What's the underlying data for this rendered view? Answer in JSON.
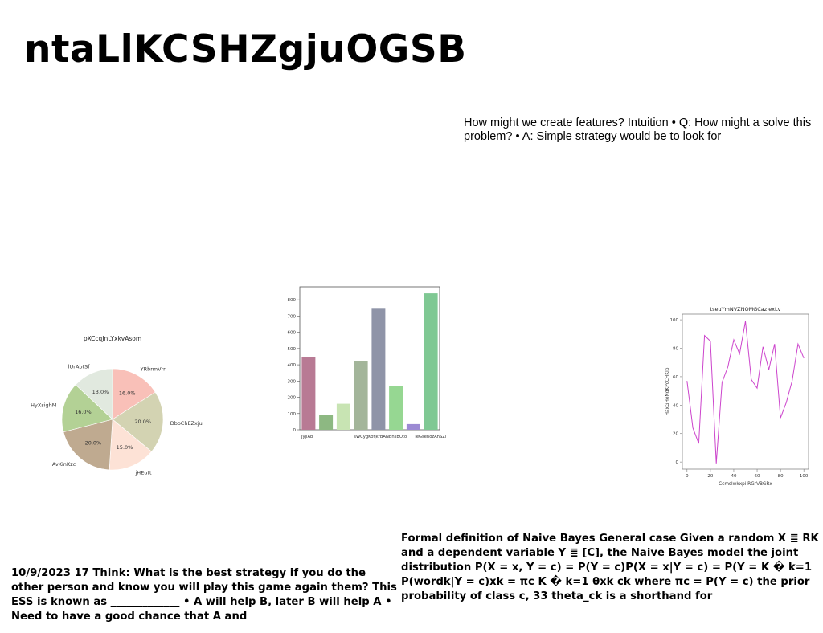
{
  "title": "ntaLlKCSHZgjuOGSB",
  "text_blocks": {
    "intuition": "How might we create features? Intuition • Q: How might a solve this problem? • A: Simple strategy would be to look for",
    "naive_bayes": "Formal definition of Naive Bayes General case Given a random X ≣ RK and a dependent variable Y ≣ [C], the Naive Bayes model the joint distribution P(X = x, Y = c) = P(Y = c)P(X = x|Y = c) = P(Y = K � k=1 P(wordk|Y = c)xk = πc K � k=1 θxk ck where πc = P(Y = c) the prior probability of class c, 33 theta_ck is a shorthand for",
    "think": "10/9/2023 17 Think: What is the best strategy if you do the other person and know you will play this game again them? This ESS is known as _____________ • A will help B, later B will help A • Need to have a good chance that A and"
  },
  "chart_data": [
    {
      "type": "pie",
      "title": "pXCcqJnLYxkvAsom",
      "labels": [
        "YRbrmVrr",
        "DboChEZxju",
        "jHEutt",
        "AvKinKzc",
        "HyXsighM",
        "lUrAbtSf"
      ],
      "values": [
        16.0,
        20.0,
        15.0,
        20.0,
        16.0,
        13.0
      ],
      "value_labels": [
        "16.0%",
        "20.0%",
        "15.0%",
        "20.0%",
        "16.0%",
        "13.0%"
      ],
      "colors": [
        "#f9c0b8",
        "#d3d3b2",
        "#fde2d6",
        "#bfaa90",
        "#b3d195",
        "#e1e9df"
      ]
    },
    {
      "type": "bar",
      "title": "",
      "categories": [
        "JyjlAb",
        "sWCyg",
        "KofjkrBAN",
        "BhsBOto",
        "leGsenoz",
        "AhSZ",
        "lweXbf",
        "BhZiKtRF"
      ],
      "tick_labels": [
        "JyjlAb",
        "sWCygKofjkrBANBhsBOto",
        "leGsenozAhSZlweXbfBhZiKtRF"
      ],
      "values": [
        450,
        90,
        160,
        420,
        745,
        270,
        35,
        840
      ],
      "colors": [
        "#b87a94",
        "#8db882",
        "#c8e4b3",
        "#a3b59a",
        "#8f94a8",
        "#96d792",
        "#9c8ad3",
        "#7fc893"
      ],
      "ylim": [
        0,
        880
      ],
      "yticks": [
        0,
        100,
        200,
        300,
        400,
        500,
        600,
        700,
        800
      ]
    },
    {
      "type": "line",
      "title": "tseuYmNVZNOMGCaz exLv",
      "xlabel": "CcmslwkxpiIRGrVBGRx",
      "ylabel": "HaxGHeNdKPcCHKlp",
      "x": [
        0,
        5,
        10,
        15,
        20,
        25,
        30,
        35,
        40,
        45,
        50,
        55,
        60,
        65,
        70,
        75,
        80,
        85,
        90,
        95,
        100
      ],
      "y": [
        57,
        24,
        13,
        89,
        85,
        -1,
        56,
        67,
        86,
        76,
        99,
        58,
        52,
        81,
        65,
        83,
        31,
        42,
        57,
        83,
        73
      ],
      "xlim": [
        -4,
        104
      ],
      "ylim": [
        -5,
        104
      ],
      "xticks": [
        0,
        20,
        40,
        60,
        80,
        100
      ],
      "yticks": [
        0,
        20,
        40,
        60,
        80,
        100
      ],
      "color": "#cc44cc"
    }
  ]
}
